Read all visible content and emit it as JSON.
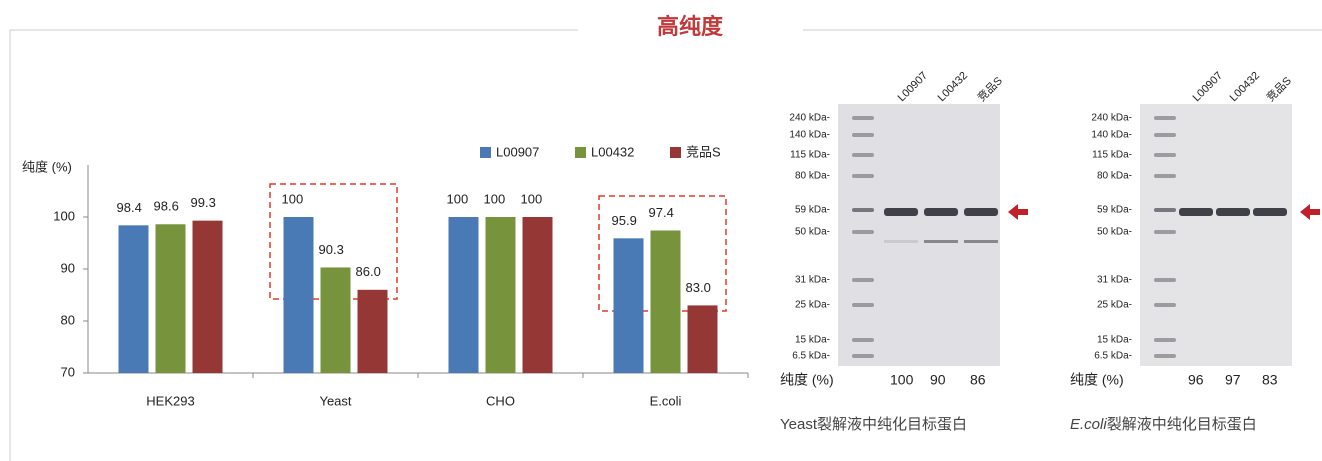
{
  "header": {
    "title": "高纯度"
  },
  "chart_data": {
    "type": "bar",
    "y_label": "纯度 (%)",
    "categories": [
      "HEK293",
      "Yeast",
      "CHO",
      "E.coli"
    ],
    "series": [
      {
        "name": "L00907",
        "color": "#4a7ab5",
        "values": [
          98.4,
          100,
          100,
          95.9
        ],
        "value_labels": [
          "98.4",
          "100",
          "100",
          "95.9"
        ]
      },
      {
        "name": "L00432",
        "color": "#77933c",
        "values": [
          98.6,
          90.3,
          100,
          97.4
        ],
        "value_labels": [
          "98.6",
          "90.3",
          "100",
          "97.4"
        ]
      },
      {
        "name": "竞品S",
        "color": "#953735",
        "values": [
          99.3,
          86.0,
          100,
          83.0
        ],
        "value_labels": [
          "99.3",
          "86.0",
          "100",
          "83.0"
        ]
      }
    ],
    "ylim": [
      70,
      110
    ],
    "yticks": [
      70,
      80,
      90,
      100
    ],
    "grid": false,
    "legend": "top-right"
  },
  "gels": [
    {
      "lanes": [
        "L00907",
        "L00432",
        "竞品S"
      ],
      "markers": [
        "240 kDa-",
        "140 kDa-",
        "115 kDa-",
        "80 kDa-",
        "59 kDa-",
        "50 kDa-",
        "31 kDa-",
        "25 kDa-",
        "15 kDa-",
        "6.5 kDa-"
      ],
      "purity_label": "纯度 (%)",
      "purity": [
        "100",
        "90",
        "86"
      ],
      "caption_prefix": "Yeast",
      "caption": "裂解液中纯化目标蛋白"
    },
    {
      "lanes": [
        "L00907",
        "L00432",
        "竞品S"
      ],
      "markers": [
        "240 kDa-",
        "140 kDa-",
        "115 kDa-",
        "80 kDa-",
        "59 kDa-",
        "50 kDa-",
        "31 kDa-",
        "25 kDa-",
        "15 kDa-",
        "6.5 kDa-"
      ],
      "purity_label": "纯度 (%)",
      "purity": [
        "96",
        "97",
        "83"
      ],
      "caption_prefix": "E.coli",
      "caption": "裂解液中纯化目标蛋白"
    }
  ]
}
